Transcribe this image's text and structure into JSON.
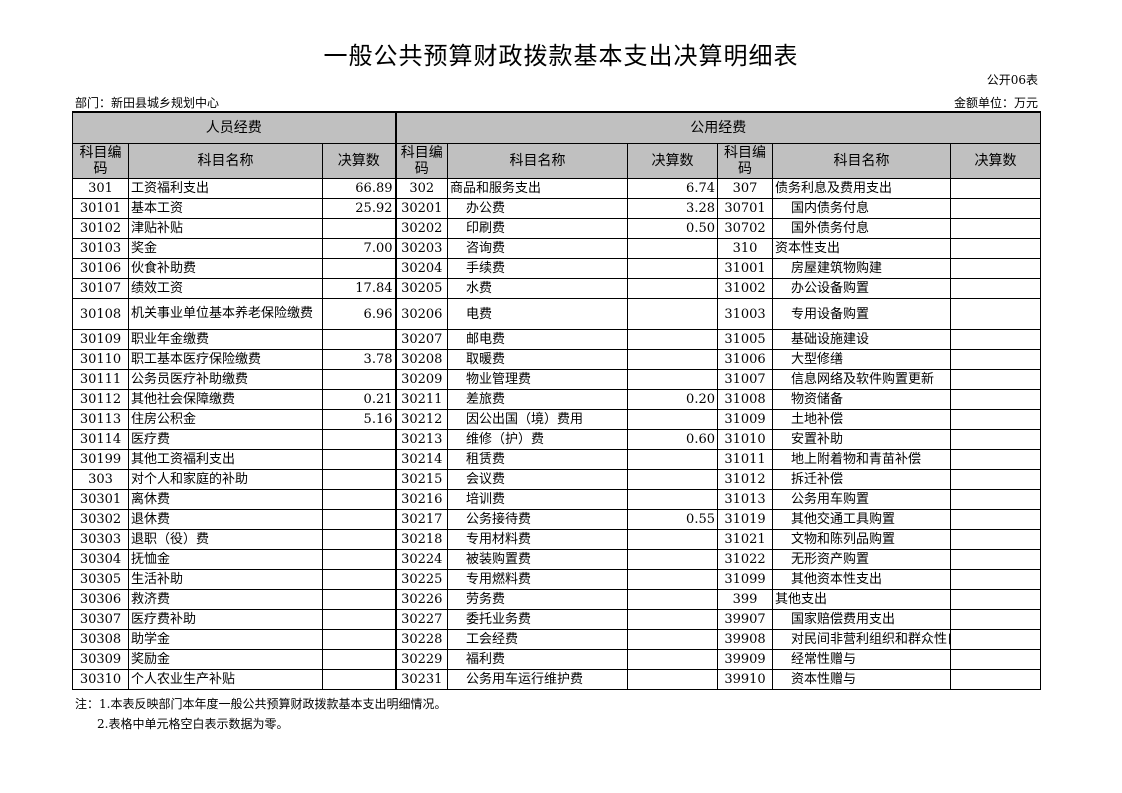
{
  "title": "一般公共预算财政拨款基本支出决算明细表",
  "form_no": "公开06表",
  "department": "部门：新田县城乡规划中心",
  "unit": "金额单位：万元",
  "group_headers": {
    "personnel": "人员经费",
    "public": "公用经费"
  },
  "col_headers": {
    "code": "科目编码",
    "name": "科目名称",
    "amount": "决算数"
  },
  "header_bg": "#c0c0c0",
  "rows": [
    [
      [
        "301",
        "工资福利支出",
        "66.89"
      ],
      [
        "302",
        "商品和服务支出",
        "6.74"
      ],
      [
        "307",
        "债务利息及费用支出",
        ""
      ]
    ],
    [
      [
        "30101",
        "基本工资",
        "25.92"
      ],
      [
        "30201",
        "办公费",
        "3.28"
      ],
      [
        "30701",
        "国内债务付息",
        ""
      ]
    ],
    [
      [
        "30102",
        "津贴补贴",
        ""
      ],
      [
        "30202",
        "印刷费",
        "0.50"
      ],
      [
        "30702",
        "国外债务付息",
        ""
      ]
    ],
    [
      [
        "30103",
        "奖金",
        "7.00"
      ],
      [
        "30203",
        "咨询费",
        ""
      ],
      [
        "310",
        "资本性支出",
        ""
      ]
    ],
    [
      [
        "30106",
        "伙食补助费",
        ""
      ],
      [
        "30204",
        "手续费",
        ""
      ],
      [
        "31001",
        "房屋建筑物购建",
        ""
      ]
    ],
    [
      [
        "30107",
        "绩效工资",
        "17.84"
      ],
      [
        "30205",
        "水费",
        ""
      ],
      [
        "31002",
        "办公设备购置",
        ""
      ]
    ],
    [
      [
        "30108",
        "机关事业单位基本养老保险缴费",
        "6.96"
      ],
      [
        "30206",
        "电费",
        ""
      ],
      [
        "31003",
        "专用设备购置",
        ""
      ]
    ],
    [
      [
        "30109",
        "职业年金缴费",
        ""
      ],
      [
        "30207",
        "邮电费",
        ""
      ],
      [
        "31005",
        "基础设施建设",
        ""
      ]
    ],
    [
      [
        "30110",
        "职工基本医疗保险缴费",
        "3.78"
      ],
      [
        "30208",
        "取暖费",
        ""
      ],
      [
        "31006",
        "大型修缮",
        ""
      ]
    ],
    [
      [
        "30111",
        "公务员医疗补助缴费",
        ""
      ],
      [
        "30209",
        "物业管理费",
        ""
      ],
      [
        "31007",
        "信息网络及软件购置更新",
        ""
      ]
    ],
    [
      [
        "30112",
        "其他社会保障缴费",
        "0.21"
      ],
      [
        "30211",
        "差旅费",
        "0.20"
      ],
      [
        "31008",
        "物资储备",
        ""
      ]
    ],
    [
      [
        "30113",
        "住房公积金",
        "5.16"
      ],
      [
        "30212",
        "因公出国（境）费用",
        ""
      ],
      [
        "31009",
        "土地补偿",
        ""
      ]
    ],
    [
      [
        "30114",
        "医疗费",
        ""
      ],
      [
        "30213",
        "维修（护）费",
        "0.60"
      ],
      [
        "31010",
        "安置补助",
        ""
      ]
    ],
    [
      [
        "30199",
        "其他工资福利支出",
        ""
      ],
      [
        "30214",
        "租赁费",
        ""
      ],
      [
        "31011",
        "地上附着物和青苗补偿",
        ""
      ]
    ],
    [
      [
        "303",
        "对个人和家庭的补助",
        ""
      ],
      [
        "30215",
        "会议费",
        ""
      ],
      [
        "31012",
        "拆迁补偿",
        ""
      ]
    ],
    [
      [
        "30301",
        "离休费",
        ""
      ],
      [
        "30216",
        "培训费",
        ""
      ],
      [
        "31013",
        "公务用车购置",
        ""
      ]
    ],
    [
      [
        "30302",
        "退休费",
        ""
      ],
      [
        "30217",
        "公务接待费",
        "0.55"
      ],
      [
        "31019",
        "其他交通工具购置",
        ""
      ]
    ],
    [
      [
        "30303",
        "退职（役）费",
        ""
      ],
      [
        "30218",
        "专用材料费",
        ""
      ],
      [
        "31021",
        "文物和陈列品购置",
        ""
      ]
    ],
    [
      [
        "30304",
        "抚恤金",
        ""
      ],
      [
        "30224",
        "被装购置费",
        ""
      ],
      [
        "31022",
        "无形资产购置",
        ""
      ]
    ],
    [
      [
        "30305",
        "生活补助",
        ""
      ],
      [
        "30225",
        "专用燃料费",
        ""
      ],
      [
        "31099",
        "其他资本性支出",
        ""
      ]
    ],
    [
      [
        "30306",
        "救济费",
        ""
      ],
      [
        "30226",
        "劳务费",
        ""
      ],
      [
        "399",
        "其他支出",
        ""
      ]
    ],
    [
      [
        "30307",
        "医疗费补助",
        ""
      ],
      [
        "30227",
        "委托业务费",
        ""
      ],
      [
        "39907",
        "国家赔偿费用支出",
        ""
      ]
    ],
    [
      [
        "30308",
        "助学金",
        ""
      ],
      [
        "30228",
        "工会经费",
        ""
      ],
      [
        "39908",
        "对民间非营利组织和群众性自",
        ""
      ]
    ],
    [
      [
        "30309",
        "奖励金",
        ""
      ],
      [
        "30229",
        "福利费",
        ""
      ],
      [
        "39909",
        "经常性赠与",
        ""
      ]
    ],
    [
      [
        "30310",
        "个人农业生产补贴",
        ""
      ],
      [
        "30231",
        "公务用车运行维护费",
        ""
      ],
      [
        "39910",
        "资本性赠与",
        ""
      ]
    ]
  ],
  "notes": [
    "注：1.本表反映部门本年度一般公共预算财政拨款基本支出明细情况。",
    "2.表格中单元格空白表示数据为零。"
  ]
}
